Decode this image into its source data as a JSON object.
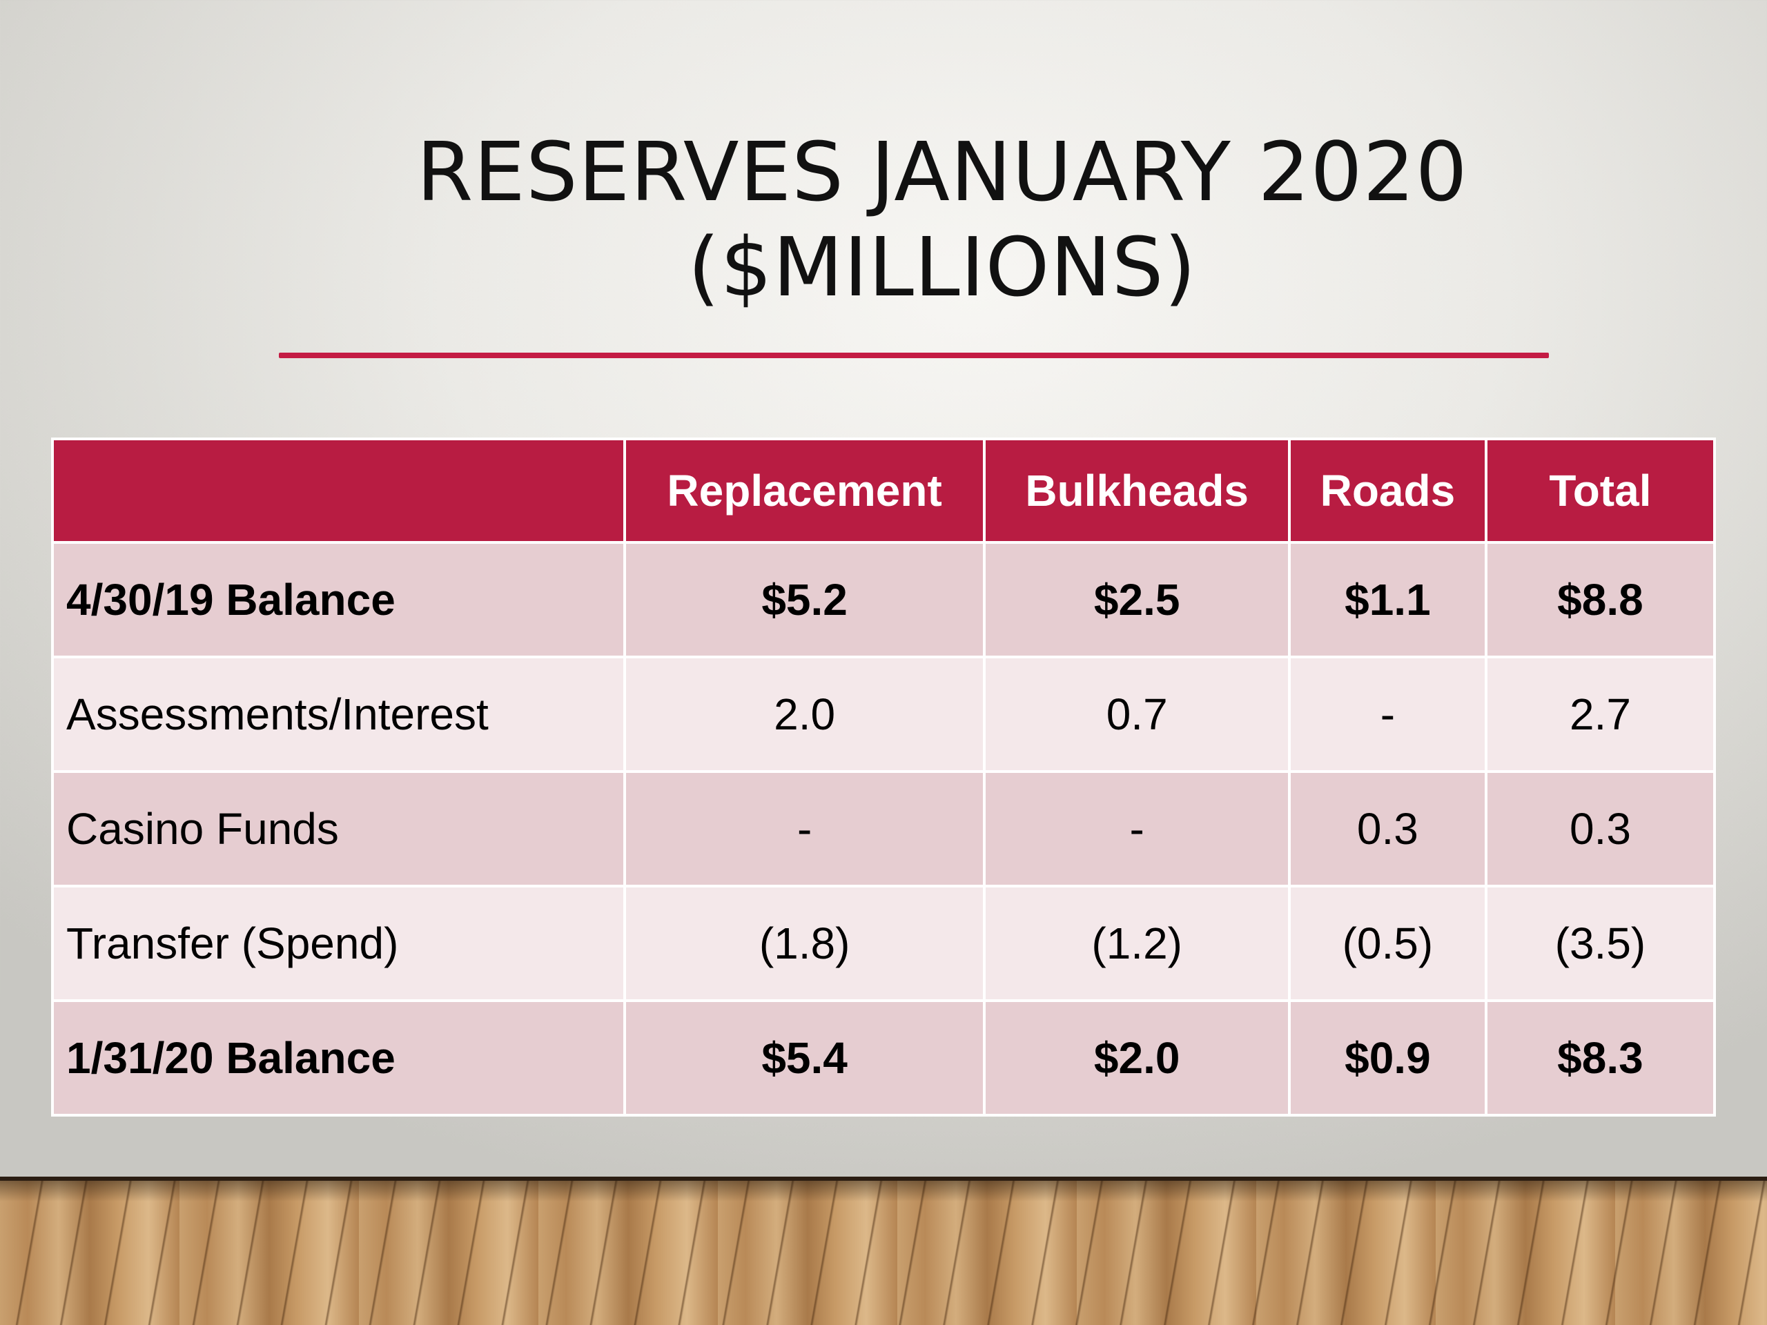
{
  "slide": {
    "title_line1": "RESERVES JANUARY 2020",
    "title_line2": "($MILLIONS)"
  },
  "colors": {
    "accent": "#b81c42",
    "rule": "#c41c44",
    "row_dark": "#e6cdd1",
    "row_light": "#f4e8ea"
  },
  "table": {
    "headers": [
      "",
      "Replacement",
      "Bulkheads",
      "Roads",
      "Total"
    ],
    "rows": [
      {
        "label": "4/30/19 Balance",
        "replacement": "$5.2",
        "bulkheads": "$2.5",
        "roads": "$1.1",
        "total": "$8.8"
      },
      {
        "label": "Assessments/Interest",
        "replacement": "2.0",
        "bulkheads": "0.7",
        "roads": "-",
        "total": "2.7"
      },
      {
        "label": "Casino Funds",
        "replacement": "-",
        "bulkheads": "-",
        "roads": "0.3",
        "total": "0.3"
      },
      {
        "label": "Transfer (Spend)",
        "replacement": "(1.8)",
        "bulkheads": "(1.2)",
        "roads": "(0.5)",
        "total": "(3.5)"
      },
      {
        "label": "1/31/20 Balance",
        "replacement": "$5.4",
        "bulkheads": "$2.0",
        "roads": "$0.9",
        "total": "$8.3"
      }
    ]
  }
}
